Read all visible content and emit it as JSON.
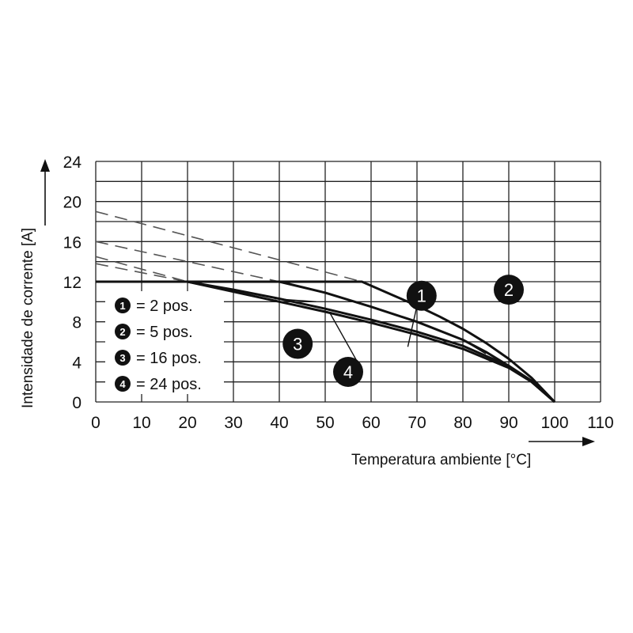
{
  "chart_data": {
    "type": "line",
    "title": "",
    "xlabel": "Temperatura ambiente [°C]",
    "ylabel": "Intensidade de corrente [A]",
    "xlim": [
      0,
      110
    ],
    "ylim": [
      0,
      24
    ],
    "x_ticks": [
      0,
      10,
      20,
      30,
      40,
      50,
      60,
      70,
      80,
      90,
      100,
      110
    ],
    "y_ticks": [
      0,
      4,
      8,
      12,
      16,
      20,
      24
    ],
    "grid": true,
    "legend_position": "bottom-left",
    "series": [
      {
        "id": "1",
        "name": "= 2 pos.",
        "solid": [
          [
            0,
            12
          ],
          [
            58,
            12
          ],
          [
            65,
            10.6
          ],
          [
            70,
            9.6
          ],
          [
            75,
            8.5
          ],
          [
            80,
            7.3
          ],
          [
            85,
            5.9
          ],
          [
            90,
            4.3
          ],
          [
            95,
            2.4
          ],
          [
            100,
            0
          ]
        ],
        "dashed": [
          [
            0,
            19
          ],
          [
            58,
            12
          ]
        ],
        "marker_at": [
          [
            71,
            10.6
          ]
        ]
      },
      {
        "id": "2",
        "name": "= 5 pos.",
        "solid": [
          [
            0,
            12
          ],
          [
            40,
            12
          ],
          [
            50,
            10.9
          ],
          [
            60,
            9.5
          ],
          [
            70,
            8
          ],
          [
            80,
            6.2
          ],
          [
            85,
            5
          ],
          [
            90,
            3.6
          ],
          [
            95,
            2
          ],
          [
            100,
            0
          ]
        ],
        "dashed": [
          [
            0,
            16
          ],
          [
            40,
            12
          ]
        ],
        "marker_at": [
          [
            90,
            11.2
          ]
        ]
      },
      {
        "id": "3",
        "name": "= 16 pos.",
        "solid": [
          [
            0,
            12
          ],
          [
            20,
            12
          ],
          [
            30,
            11.2
          ],
          [
            40,
            10.3
          ],
          [
            50,
            9.3
          ],
          [
            60,
            8.2
          ],
          [
            70,
            7
          ],
          [
            80,
            5.6
          ],
          [
            90,
            3.6
          ],
          [
            95,
            2.1
          ],
          [
            100,
            0
          ]
        ],
        "dashed": [
          [
            0,
            14.5
          ],
          [
            20,
            12
          ]
        ],
        "marker_at": [
          [
            44,
            5.8
          ]
        ]
      },
      {
        "id": "4",
        "name": "= 24 pos.",
        "solid": [
          [
            0,
            12
          ],
          [
            20,
            12
          ],
          [
            30,
            11
          ],
          [
            40,
            10
          ],
          [
            50,
            9
          ],
          [
            60,
            7.9
          ],
          [
            70,
            6.7
          ],
          [
            80,
            5.3
          ],
          [
            90,
            3.4
          ],
          [
            95,
            2
          ],
          [
            100,
            0
          ]
        ],
        "dashed": [
          [
            0,
            13.8
          ],
          [
            20,
            12
          ]
        ],
        "marker_at": [
          [
            55,
            3
          ]
        ]
      }
    ]
  }
}
